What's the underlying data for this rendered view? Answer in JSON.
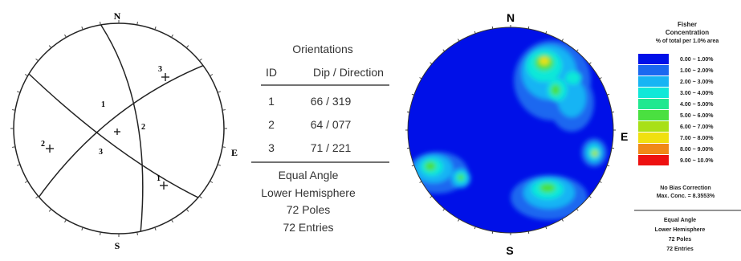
{
  "stereonet": {
    "compass": {
      "north": "N",
      "south": "S",
      "east": "E"
    },
    "great_circle_labels": [
      "1",
      "2",
      "3"
    ],
    "pole_labels": [
      "1",
      "2",
      "3"
    ]
  },
  "orientations": {
    "title": "Orientations",
    "col_id": "ID",
    "col_dipdir": "Dip / Direction",
    "rows": [
      {
        "id": "1",
        "value": "66 / 319"
      },
      {
        "id": "2",
        "value": "64 / 077"
      },
      {
        "id": "3",
        "value": "71 / 221"
      }
    ],
    "projection": "Equal Angle",
    "hemisphere": "Lower Hemisphere",
    "poles": "72 Poles",
    "entries": "72 Entries"
  },
  "contour_plot": {
    "compass": {
      "north": "N",
      "south": "S",
      "east": "E"
    }
  },
  "legend": {
    "title_line1": "Fisher",
    "title_line2": "Concentration",
    "title_line3": "% of total per 1.0% area",
    "items": [
      {
        "label": "0.00 ~ 1.00%",
        "color": "#0010e8"
      },
      {
        "label": "1.00 ~ 2.00%",
        "color": "#1a68f0"
      },
      {
        "label": "2.00 ~ 3.00%",
        "color": "#17b4f4"
      },
      {
        "label": "3.00 ~ 4.00%",
        "color": "#10e8d8"
      },
      {
        "label": "4.00 ~ 5.00%",
        "color": "#20e890"
      },
      {
        "label": "5.00 ~ 6.00%",
        "color": "#4ae040"
      },
      {
        "label": "6.00 ~ 7.00%",
        "color": "#a8e018"
      },
      {
        "label": "7.00 ~ 8.00%",
        "color": "#f0e010"
      },
      {
        "label": "8.00 ~ 9.00%",
        "color": "#f08818"
      },
      {
        "label": "9.00 ~ 10.0%",
        "color": "#ee1010"
      }
    ],
    "bias": "No Bias Correction",
    "max_conc": "Max. Conc. = 8.3553%",
    "projection": "Equal Angle",
    "hemisphere": "Lower Hemisphere",
    "poles": "72 Poles",
    "entries": "72 Entries"
  }
}
